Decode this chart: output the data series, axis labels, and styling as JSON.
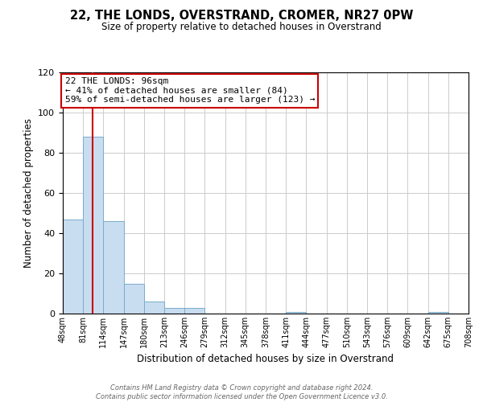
{
  "title": "22, THE LONDS, OVERSTRAND, CROMER, NR27 0PW",
  "subtitle": "Size of property relative to detached houses in Overstrand",
  "xlabel": "Distribution of detached houses by size in Overstrand",
  "ylabel": "Number of detached properties",
  "bin_edges": [
    48,
    81,
    114,
    147,
    180,
    213,
    246,
    279,
    312,
    345,
    378,
    411,
    444,
    477,
    510,
    543,
    576,
    609,
    642,
    675,
    708
  ],
  "bar_heights": [
    47,
    88,
    46,
    15,
    6,
    3,
    3,
    0,
    0,
    0,
    0,
    1,
    0,
    0,
    0,
    0,
    0,
    0,
    1,
    0
  ],
  "bar_color": "#c8ddf0",
  "bar_edgecolor": "#7aabcc",
  "vline_x": 96,
  "vline_color": "#cc0000",
  "ylim": [
    0,
    120
  ],
  "yticks": [
    0,
    20,
    40,
    60,
    80,
    100,
    120
  ],
  "annotation_title": "22 THE LONDS: 96sqm",
  "annotation_line1": "← 41% of detached houses are smaller (84)",
  "annotation_line2": "59% of semi-detached houses are larger (123) →",
  "annotation_box_color": "#ffffff",
  "annotation_box_edgecolor": "#cc0000",
  "footer_line1": "Contains HM Land Registry data © Crown copyright and database right 2024.",
  "footer_line2": "Contains public sector information licensed under the Open Government Licence v3.0.",
  "background_color": "#ffffff",
  "grid_color": "#cccccc"
}
